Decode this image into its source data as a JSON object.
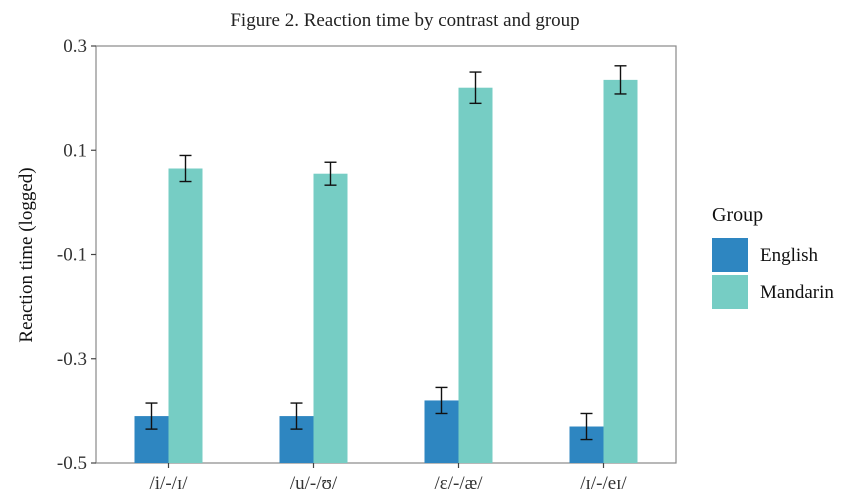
{
  "chart_data": {
    "type": "bar",
    "title": "Figure 2. Reaction time by contrast and group",
    "xlabel": "",
    "ylabel": "Reaction time (logged)",
    "categories": [
      "/i/-/ɪ/",
      "/u/-/ʊ/",
      "/ɛ/-/æ/",
      "/ɪ/-/eɪ/"
    ],
    "y_ticks": [
      "0.3",
      "0.1",
      "-0.1",
      "-0.3",
      "-0.5"
    ],
    "ylim": [
      -0.5,
      0.3
    ],
    "grid": false,
    "legend_title": "Group",
    "legend_placement": "right",
    "series": [
      {
        "name": "English",
        "color": "#2e86c1",
        "values": [
          -0.41,
          -0.41,
          -0.38,
          -0.43
        ],
        "error": [
          0.025,
          0.025,
          0.025,
          0.025
        ]
      },
      {
        "name": "Mandarin",
        "color": "#76cdc4",
        "values": [
          0.065,
          0.055,
          0.22,
          0.235
        ],
        "error": [
          0.025,
          0.022,
          0.03,
          0.027
        ]
      }
    ]
  }
}
